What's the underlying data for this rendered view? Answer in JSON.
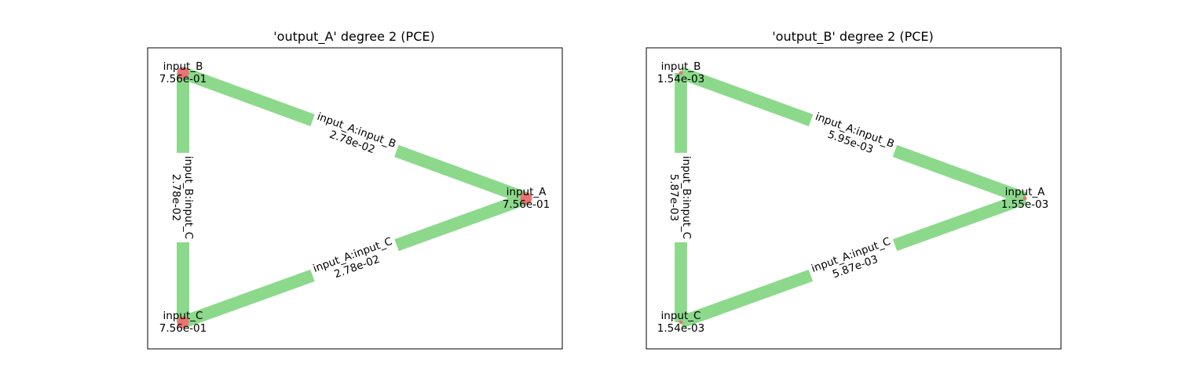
{
  "panels": [
    {
      "title": "'output_A' degree 2 (PCE)",
      "node_color": "#e87474",
      "edge_color": "#8cd98c",
      "nodes": [
        {
          "id": "input_B",
          "name": "input_B",
          "value": "7.56e-01",
          "size": 0.756
        },
        {
          "id": "input_A",
          "name": "input_A",
          "value": "7.56e-01",
          "size": 0.756
        },
        {
          "id": "input_C",
          "name": "input_C",
          "value": "7.56e-01",
          "size": 0.756
        }
      ],
      "edges": [
        {
          "from": "input_B",
          "to": "input_C",
          "name": "input_B:input_C",
          "value": "2.78e-02",
          "weight": 0.0278
        },
        {
          "from": "input_A",
          "to": "input_B",
          "name": "input_A:input_B",
          "value": "2.78e-02",
          "weight": 0.0278
        },
        {
          "from": "input_A",
          "to": "input_C",
          "name": "input_A:input_C",
          "value": "2.78e-02",
          "weight": 0.0278
        }
      ]
    },
    {
      "title": "'output_B' degree 2 (PCE)",
      "node_color": "#e87474",
      "edge_color": "#8cd98c",
      "nodes": [
        {
          "id": "input_B",
          "name": "input_B",
          "value": "1.54e-03",
          "size": 0.00154
        },
        {
          "id": "input_A",
          "name": "input_A",
          "value": "1.55e-03",
          "size": 0.00155
        },
        {
          "id": "input_C",
          "name": "input_C",
          "value": "1.54e-03",
          "size": 0.00154
        }
      ],
      "edges": [
        {
          "from": "input_B",
          "to": "input_C",
          "name": "input_B:input_C",
          "value": "5.87e-03",
          "weight": 0.00587
        },
        {
          "from": "input_A",
          "to": "input_B",
          "name": "input_A:input_B",
          "value": "5.95e-03",
          "weight": 0.00595
        },
        {
          "from": "input_A",
          "to": "input_C",
          "name": "input_A:input_C",
          "value": "5.87e-03",
          "weight": 0.00587
        }
      ]
    }
  ]
}
